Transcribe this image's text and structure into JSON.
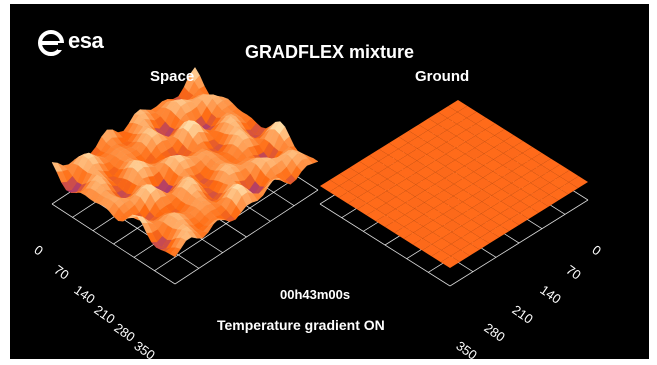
{
  "logo": {
    "name": "esa-logo-icon",
    "text": "esa"
  },
  "title": "GRADFLEX mixture",
  "panels": {
    "left_label": "Space",
    "right_label": "Ground"
  },
  "elapsed_time": "00h43m00s",
  "status": "Temperature gradient ON",
  "axis_ticks": {
    "left": [
      "0",
      "70",
      "140",
      "210",
      "280",
      "350"
    ],
    "right": [
      "0",
      "70",
      "140",
      "210",
      "280",
      "350"
    ]
  },
  "colors": {
    "background": "#000000",
    "surface_low": "#7a1fa8",
    "surface_mid": "#ff6a10",
    "surface_high": "#fff6c8",
    "ground_surface": "#ff6a1a",
    "grid": "#ffffff"
  }
}
